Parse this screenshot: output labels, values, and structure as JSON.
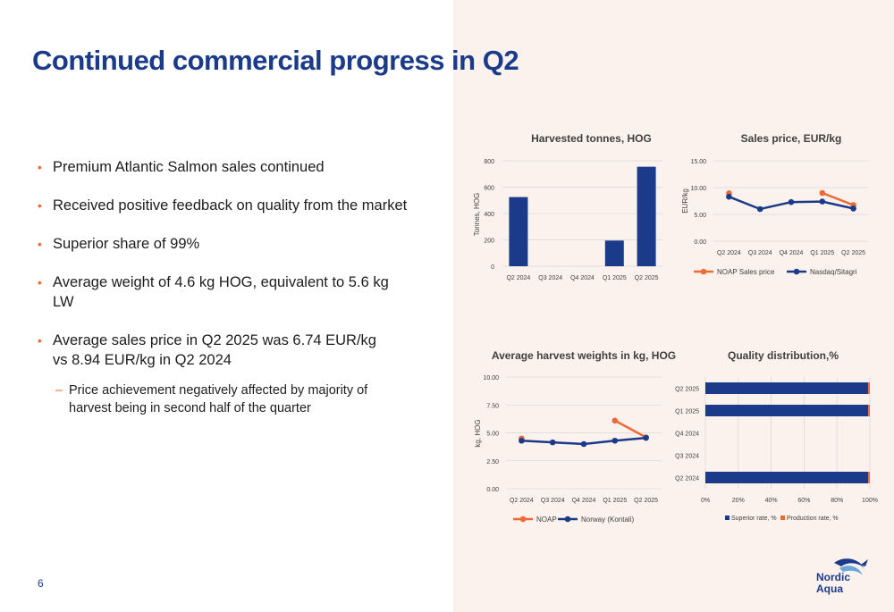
{
  "slide": {
    "title": "Continued commercial progress in Q2",
    "page_number": "6",
    "logo_line1": "Nordic",
    "logo_line2": "Aqua",
    "bullets": [
      "Premium Atlantic Salmon sales continued",
      "Received positive feedback on quality from the market",
      "Superior share of 99%",
      "Average weight of 4.6 kg HOG, equivalent to 5.6 kg LW",
      "Average sales price in Q2 2025 was 6.74 EUR/kg vs 8.94 EUR/kg in Q2 2024"
    ],
    "sub_bullet": "Price achievement negatively affected by majority of harvest being in second half of the quarter",
    "colors": {
      "navy": "#1b3a8a",
      "orange": "#ee6a35",
      "panel": "#fbf2ee"
    }
  },
  "chart_data": [
    {
      "type": "bar",
      "title": "Harvested tonnes, HOG",
      "ylabel": "Tonnes, HOG",
      "categories": [
        "Q2 2024",
        "Q3 2024",
        "Q4 2024",
        "Q1 2025",
        "Q2 2025"
      ],
      "values": [
        525,
        0,
        0,
        195,
        755
      ],
      "ylim": [
        0,
        800
      ],
      "yticks": [
        "0",
        "200",
        "400",
        "600",
        "800"
      ],
      "grid": true
    },
    {
      "type": "line",
      "title": "Sales price, EUR/kg",
      "ylabel": "EUR/kg",
      "categories": [
        "Q2 2024",
        "Q3 2024",
        "Q4 2024",
        "Q1 2025",
        "Q2 2025"
      ],
      "ylim": [
        0,
        15
      ],
      "yticks": [
        "0.00",
        "5.00",
        "10.00",
        "15.00"
      ],
      "series": [
        {
          "name": "NOAP Sales price",
          "color": "#ee6a35",
          "values": [
            8.94,
            null,
            null,
            9.0,
            6.74
          ]
        },
        {
          "name": "Nasdaq/Sitagri",
          "color": "#1b3a8a",
          "values": [
            8.3,
            6.0,
            7.3,
            7.4,
            6.1
          ]
        }
      ],
      "legend": "bottom",
      "grid": true
    },
    {
      "type": "line",
      "title": "Average harvest weights in kg, HOG",
      "ylabel": "kg, HOG",
      "categories": [
        "Q2 2024",
        "Q3 2024",
        "Q4 2024",
        "Q1 2025",
        "Q2 2025"
      ],
      "ylim": [
        0,
        10
      ],
      "yticks": [
        "0.00",
        "2.50",
        "5.00",
        "7.50",
        "10.00"
      ],
      "series": [
        {
          "name": "NOAP",
          "color": "#ee6a35",
          "values": [
            4.5,
            null,
            null,
            6.1,
            4.6
          ]
        },
        {
          "name": "Norway (Kontali)",
          "color": "#1b3a8a",
          "values": [
            4.3,
            4.15,
            4.0,
            4.3,
            4.55
          ]
        }
      ],
      "legend": "bottom",
      "grid": true
    },
    {
      "type": "bar",
      "orientation": "horizontal",
      "stacked": true,
      "title": "Quality distribution,%",
      "categories": [
        "Q2 2024",
        "Q3 2024",
        "Q4 2024",
        "Q1 2025",
        "Q2 2025"
      ],
      "xlim": [
        0,
        100
      ],
      "xticks": [
        "0%",
        "20%",
        "40%",
        "60%",
        "80%",
        "100%"
      ],
      "series": [
        {
          "name": "Superior rate, %",
          "color": "#1b3a8a",
          "values": [
            99,
            0,
            0,
            99,
            99
          ]
        },
        {
          "name": "Production rate, %",
          "color": "#ee6a35",
          "values": [
            1,
            0,
            0,
            1,
            1
          ]
        }
      ],
      "legend": "bottom",
      "grid": true
    }
  ]
}
